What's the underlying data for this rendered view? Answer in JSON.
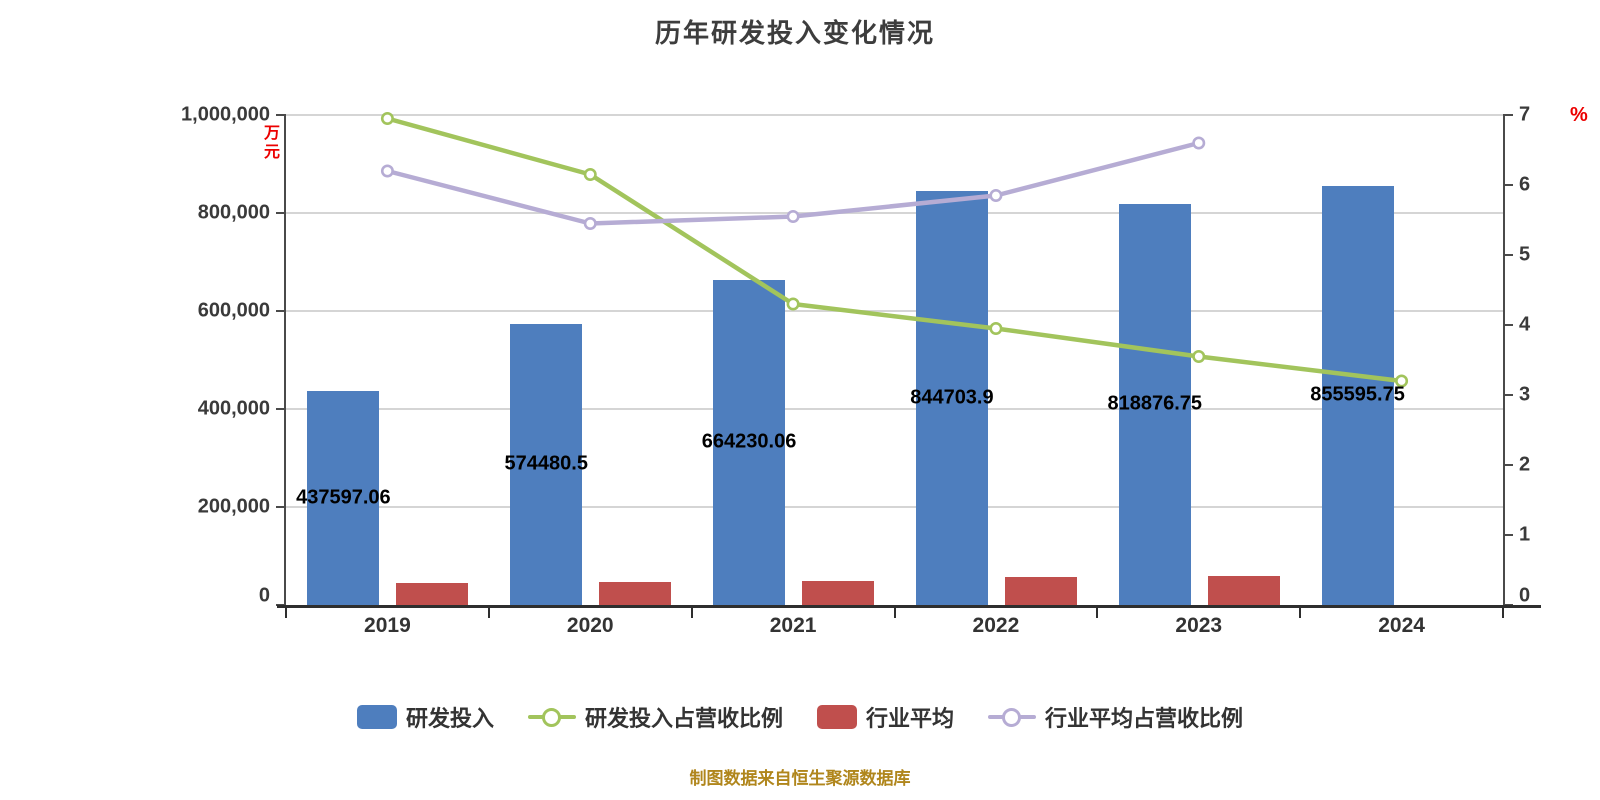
{
  "title": "历年研发投入变化情况",
  "footer": "制图数据来自恒生聚源数据库",
  "colors": {
    "bar_blue": "#4E7EBE",
    "bar_red": "#C04F4D",
    "line_green": "#A2C45C",
    "line_purple": "#B6ACD4",
    "marker_fill": "#FFFFFF",
    "grid_line": "#D5D5D5",
    "axis_line": "#4A4A4A",
    "x_axis_line": "#2E2E2E",
    "tick_text": "#3A3A3A",
    "axis_unit_text": "#EC0000",
    "bar_value_text": "#000000",
    "title_text": "#3D3D3D",
    "footer_text": "#B0861C",
    "legend_text": "#333333"
  },
  "chart_data": {
    "type": "combo: grouped bars on left axis + lines with circle markers on right axis",
    "title": "历年研发投入变化情况",
    "categories": [
      "2019",
      "2020",
      "2021",
      "2022",
      "2023",
      "2024"
    ],
    "left_axis": {
      "unit": "万元",
      "min": 0,
      "max": 1000000,
      "tick_values": [
        1000000,
        800000,
        600000,
        400000,
        200000,
        0
      ],
      "tick_labels": [
        "1,000,000",
        "800,000",
        "600,000",
        "400,000",
        "200,000",
        "0"
      ]
    },
    "right_axis": {
      "unit": "%",
      "min": 0,
      "max": 7,
      "tick_values": [
        7,
        6,
        5,
        4,
        3,
        2,
        1,
        0
      ],
      "tick_labels": [
        "7",
        "6",
        "5",
        "4",
        "3",
        "2",
        "1",
        "0"
      ]
    },
    "series": [
      {
        "name": "研发投入",
        "type": "bar",
        "axis": "left",
        "color_key": "bar_blue",
        "values": [
          437597.06,
          574480.5,
          664230.06,
          844703.9,
          818876.75,
          855595.75
        ],
        "value_labels": [
          "437597.06",
          "574480.5",
          "664230.06",
          "844703.9",
          "818876.75",
          "855595.75"
        ]
      },
      {
        "name": "研发投入占营收比例",
        "type": "line",
        "axis": "right",
        "color_key": "line_green",
        "values": [
          6.95,
          6.15,
          4.3,
          3.95,
          3.55,
          3.2
        ]
      },
      {
        "name": "行业平均",
        "type": "bar",
        "axis": "left",
        "color_key": "bar_red",
        "values": [
          44000,
          46000,
          50000,
          57000,
          59000,
          null
        ]
      },
      {
        "name": "行业平均占营收比例",
        "type": "line",
        "axis": "right",
        "color_key": "line_purple",
        "values": [
          6.2,
          5.45,
          5.55,
          5.85,
          6.6,
          null
        ]
      }
    ],
    "grid": true,
    "legend_position": "bottom"
  },
  "legend": {
    "items": [
      {
        "label": "研发投入",
        "swatch": "bar",
        "color_key": "bar_blue"
      },
      {
        "label": "研发投入占营收比例",
        "swatch": "line",
        "color_key": "line_green"
      },
      {
        "label": "行业平均",
        "swatch": "bar",
        "color_key": "bar_red"
      },
      {
        "label": "行业平均占营收比例",
        "swatch": "line",
        "color_key": "line_purple"
      }
    ]
  }
}
